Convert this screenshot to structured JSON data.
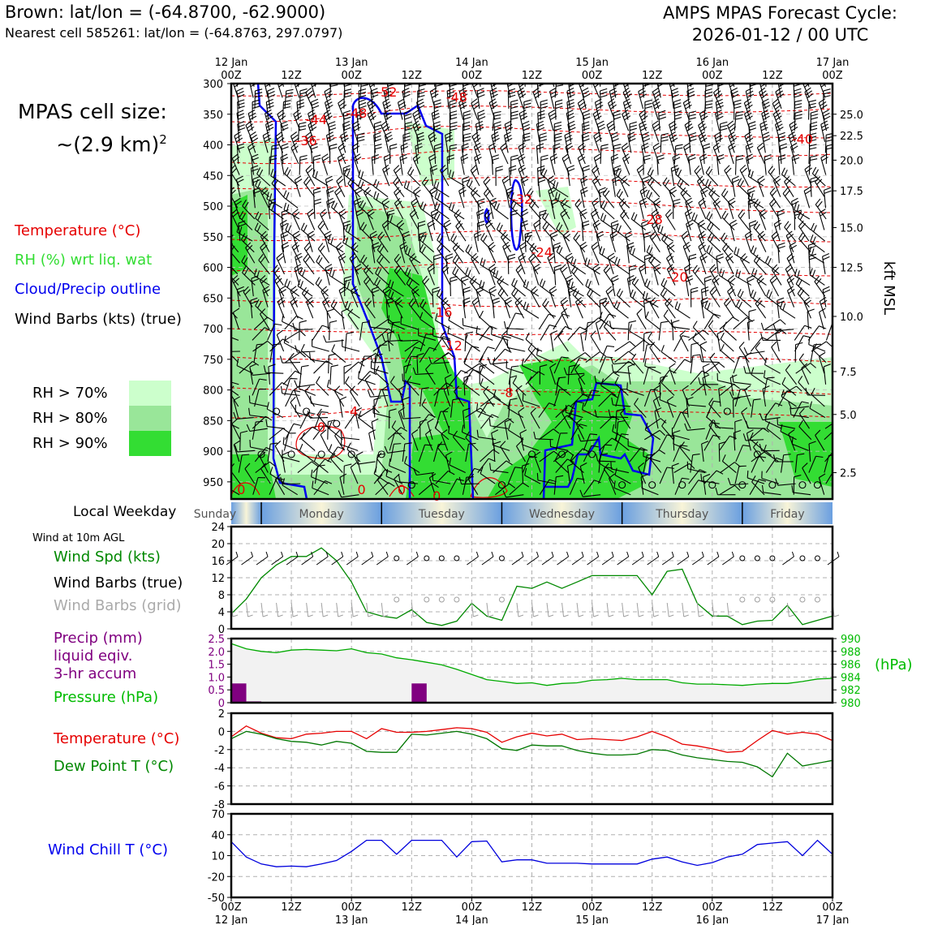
{
  "header": {
    "location_line": "Brown: lat/lon = (-64.8700, -62.9000)",
    "nearest_cell_line": "Nearest cell 585261: lat/lon = (-64.8763, 297.0797)",
    "cycle_line1": "AMPS MPAS Forecast Cycle:",
    "cycle_line2": "2026-01-12 / 00 UTC"
  },
  "cell_size": {
    "line1": "MPAS cell size:",
    "line2": "~(2.9 km)",
    "sup": "2"
  },
  "legend": {
    "temperature": "Temperature (°C)",
    "rh": "RH (%) wrt liq. wat",
    "cloud": "Cloud/Precip outline",
    "wind": "Wind Barbs (kts) (true)",
    "rh70": "RH > 70%",
    "rh80": "RH > 80%",
    "rh90": "RH > 90%"
  },
  "colors": {
    "temperature": "#e60000",
    "rh_text": "#33cc33",
    "cloud": "#0000ee",
    "rh70": "#ccffcc",
    "rh80": "#99e699",
    "rh90": "#33dd33",
    "precip": "#800080",
    "pressure": "#00aa00",
    "dewpoint": "#007700",
    "windchill": "#0000dd",
    "grid_barbs": "#a0a0a0"
  },
  "time_axis": {
    "top_labels": [
      {
        "l1": "12 Jan",
        "l2": "00Z"
      },
      {
        "l1": "",
        "l2": "12Z"
      },
      {
        "l1": "13 Jan",
        "l2": "00Z"
      },
      {
        "l1": "",
        "l2": "12Z"
      },
      {
        "l1": "14 Jan",
        "l2": "00Z"
      },
      {
        "l1": "",
        "l2": "12Z"
      },
      {
        "l1": "15 Jan",
        "l2": "00Z"
      },
      {
        "l1": "",
        "l2": "12Z"
      },
      {
        "l1": "16 Jan",
        "l2": "00Z"
      },
      {
        "l1": "",
        "l2": "12Z"
      },
      {
        "l1": "17 Jan",
        "l2": "00Z"
      }
    ]
  },
  "chart_data": [
    {
      "type": "heatmap",
      "name": "time-height cross section",
      "ylabel_left": "",
      "ylabel_right": "kft MSL",
      "y_pressure_ticks": [
        300,
        350,
        400,
        450,
        500,
        550,
        600,
        650,
        700,
        750,
        800,
        850,
        900,
        950
      ],
      "y_kft_ticks": [
        "25.0",
        "22.5",
        "20.0",
        "17.5",
        "15.0",
        "12.5",
        "10.0",
        "7.5",
        "5.0",
        "2.5"
      ],
      "y_kft_pressure": [
        350,
        385,
        425,
        475,
        535,
        600,
        680,
        770,
        840,
        935
      ],
      "temperature_labels": [
        {
          "text": "-52",
          "hour": 31,
          "p": 313
        },
        {
          "text": "-48",
          "hour": 45,
          "p": 322
        },
        {
          "text": "-48",
          "hour": 25,
          "p": 348
        },
        {
          "text": "-44",
          "hour": 17,
          "p": 358
        },
        {
          "text": "-36",
          "hour": 15,
          "p": 393
        },
        {
          "text": "-40",
          "hour": 114,
          "p": 390
        },
        {
          "text": "-32",
          "hour": 58,
          "p": 488
        },
        {
          "text": "-28",
          "hour": 84,
          "p": 521
        },
        {
          "text": "-24",
          "hour": 62,
          "p": 575
        },
        {
          "text": "-20",
          "hour": 89,
          "p": 615
        },
        {
          "text": "-16",
          "hour": 42,
          "p": 673
        },
        {
          "text": "-12",
          "hour": 44,
          "p": 727
        },
        {
          "text": "-8",
          "hour": 55,
          "p": 804
        },
        {
          "text": "-4",
          "hour": 24,
          "p": 834
        },
        {
          "text": "0",
          "hour": 18,
          "p": 860
        },
        {
          "text": "0",
          "hour": 2,
          "p": 962
        },
        {
          "text": "0",
          "hour": 26,
          "p": 962
        },
        {
          "text": "0",
          "hour": 34,
          "p": 962
        },
        {
          "text": "0",
          "hour": 41,
          "p": 973
        }
      ],
      "weekdays": [
        "Sunday",
        "Monday",
        "Tuesday",
        "Wednesday",
        "Thursday",
        "Friday"
      ],
      "weekday_label": "Local Weekday"
    },
    {
      "type": "line",
      "name": "wind",
      "title": "Wind at 10m AGL",
      "labels": {
        "spd": "Wind Spd (kts)",
        "barbs": "Wind Barbs (true)",
        "grid": "Wind Barbs (grid)"
      },
      "x_hours": [
        0,
        3,
        6,
        9,
        12,
        15,
        18,
        21,
        24,
        27,
        30,
        33,
        36,
        39,
        42,
        45,
        48,
        51,
        54,
        57,
        60,
        63,
        66,
        69,
        72,
        75,
        78,
        81,
        84,
        87,
        90,
        93,
        96,
        99,
        102,
        105,
        108,
        111,
        114,
        117,
        120
      ],
      "speed_kts": [
        3.5,
        7,
        12,
        15,
        17,
        17,
        19,
        16,
        11,
        4,
        3,
        2.5,
        4.5,
        1.5,
        0.8,
        1.8,
        6,
        3,
        2,
        10,
        9.5,
        11,
        9.5,
        11,
        12.5,
        12.5,
        12.5,
        12.5,
        8,
        13.5,
        14,
        6,
        3,
        3,
        1,
        1.8,
        2,
        5.5,
        1,
        2,
        3
      ],
      "ylim": [
        0,
        24
      ],
      "yticks": [
        0,
        4,
        8,
        12,
        16,
        20,
        24
      ]
    },
    {
      "type": "bar",
      "name": "precip-pressure",
      "labels": {
        "precip_l1": "Precip (mm)",
        "precip_l2": "liquid eqiv.",
        "precip_l3": "3-hr accum",
        "pressure": "Pressure (hPa)",
        "units": "(hPa)"
      },
      "precip_hours": [
        0,
        3,
        36
      ],
      "precip_mm": [
        0.75,
        0.05,
        0.75
      ],
      "precip_ylim": [
        0,
        2.5
      ],
      "precip_yticks": [
        "0",
        "0.5",
        "1.0",
        "1.5",
        "2.0",
        "2.5"
      ],
      "pressure_hours": [
        0,
        3,
        6,
        9,
        12,
        15,
        18,
        21,
        24,
        27,
        30,
        33,
        36,
        39,
        42,
        45,
        48,
        51,
        54,
        57,
        60,
        63,
        66,
        69,
        72,
        75,
        78,
        81,
        84,
        87,
        90,
        93,
        96,
        99,
        102,
        105,
        108,
        111,
        114,
        117,
        120
      ],
      "pressure_hpa": [
        989.2,
        988.4,
        988.0,
        987.8,
        988.2,
        988.3,
        988.2,
        988.1,
        988.4,
        987.8,
        987.6,
        987.0,
        986.7,
        986.3,
        985.9,
        985.2,
        984.4,
        983.6,
        983.3,
        983.0,
        983.1,
        982.7,
        983.0,
        983.1,
        983.5,
        983.6,
        983.8,
        983.6,
        983.6,
        983.6,
        983.1,
        982.9,
        982.9,
        982.8,
        982.7,
        982.9,
        983.0,
        983.0,
        983.3,
        983.7,
        983.8
      ],
      "pressure_ylim": [
        980,
        990
      ],
      "pressure_yticks": [
        "980",
        "982",
        "984",
        "986",
        "988",
        "990"
      ]
    },
    {
      "type": "line",
      "name": "temperature-dewpoint",
      "labels": {
        "temp": "Temperature (°C)",
        "dew": "Dew Point T (°C)"
      },
      "x_hours": [
        0,
        3,
        6,
        9,
        12,
        15,
        18,
        21,
        24,
        27,
        30,
        33,
        36,
        39,
        42,
        45,
        48,
        51,
        54,
        57,
        60,
        63,
        66,
        69,
        72,
        75,
        78,
        81,
        84,
        87,
        90,
        93,
        96,
        99,
        102,
        105,
        108,
        111,
        114,
        117,
        120
      ],
      "temperature_c": [
        -0.6,
        0.6,
        -0.2,
        -0.7,
        -0.8,
        -0.3,
        -0.2,
        0.0,
        0.0,
        -0.8,
        0.3,
        -0.1,
        -0.1,
        0.0,
        0.2,
        0.4,
        0.3,
        -0.1,
        -1.2,
        -0.6,
        -0.2,
        -0.5,
        -0.3,
        -0.9,
        -0.8,
        -0.9,
        -1.0,
        -0.6,
        0.0,
        -0.6,
        -1.4,
        -1.6,
        -1.9,
        -2.3,
        -2.2,
        -1.0,
        0.1,
        -0.3,
        -0.1,
        -0.3,
        -1.0
      ],
      "dewpoint_c": [
        -0.8,
        0.0,
        -0.3,
        -0.8,
        -1.1,
        -1.2,
        -1.5,
        -1.1,
        -1.3,
        -2.2,
        -2.3,
        -2.3,
        -0.3,
        -0.4,
        -0.2,
        0.0,
        -0.3,
        -0.8,
        -1.9,
        -2.1,
        -1.5,
        -1.6,
        -1.6,
        -2.1,
        -2.4,
        -2.6,
        -2.6,
        -2.5,
        -2.0,
        -2.1,
        -2.6,
        -2.9,
        -3.1,
        -3.3,
        -3.4,
        -3.9,
        -5.0,
        -2.4,
        -3.8,
        -3.5,
        -3.2
      ],
      "ylim": [
        -8,
        2
      ],
      "yticks": [
        "-8",
        "-6",
        "-4",
        "-2",
        "0",
        "2"
      ]
    },
    {
      "type": "line",
      "name": "windchill",
      "label": "Wind Chill T (°C)",
      "x_hours": [
        0,
        3,
        6,
        9,
        12,
        15,
        18,
        21,
        24,
        27,
        30,
        33,
        36,
        39,
        42,
        45,
        48,
        51,
        54,
        57,
        60,
        63,
        66,
        69,
        72,
        75,
        78,
        81,
        84,
        87,
        90,
        93,
        96,
        99,
        102,
        105,
        108,
        111,
        114,
        117,
        120
      ],
      "windchill_c": [
        30,
        8,
        -2,
        -6,
        -5,
        -6,
        -2,
        3,
        16,
        32,
        32,
        12,
        32,
        32,
        32,
        8,
        30,
        31,
        1,
        4,
        4,
        -1,
        -1,
        -1,
        -2,
        -2,
        -2,
        -2,
        5,
        8,
        1,
        -4,
        0,
        8,
        12,
        26,
        28,
        30,
        10,
        32,
        12
      ],
      "ylim": [
        -50,
        70
      ],
      "yticks": [
        "-50",
        "-20",
        "10",
        "40",
        "70"
      ]
    }
  ]
}
